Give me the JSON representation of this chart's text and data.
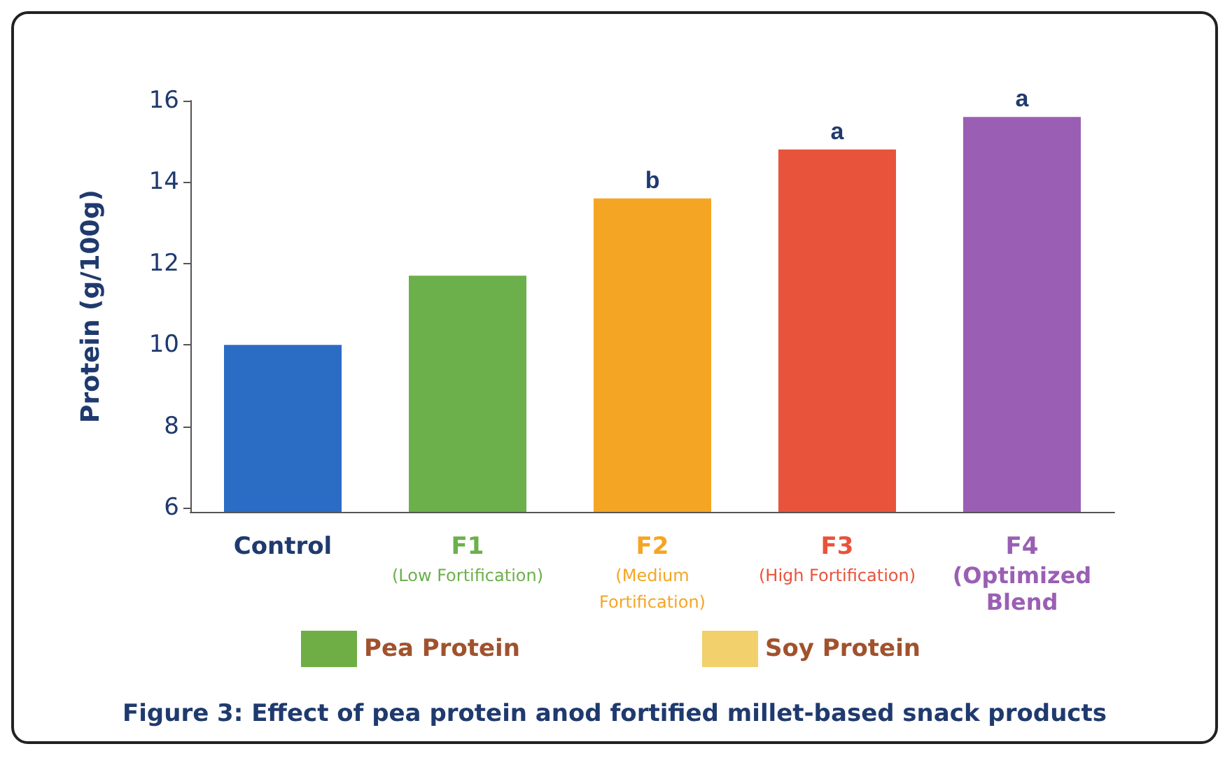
{
  "chart_data": {
    "type": "bar",
    "title": "Figure 3: Effect of pea protein anod fortified millet-based snack products",
    "ylabel": "Protein (g/100g)",
    "categories": [
      "Control",
      "F1\n(Low Fortification)",
      "F2\n(Medium\nFortification)",
      "F3\n(High Fortification)",
      "F4\n(Optimized\nBlend"
    ],
    "series": [
      {
        "values": [
          10.0,
          11.7,
          13.6,
          14.8,
          15.6
        ],
        "colors": [
          "#2b6cc4",
          "#6bb04a",
          "#f5a524",
          "#e8533b",
          "#9a5fb4"
        ]
      },
      {
        "name": "Pea Protein",
        "color": "#6fae45",
        "values": [
          null,
          null,
          null,
          null,
          null
        ]
      },
      {
        "name": "Soy Protein",
        "color": "#f2d06b",
        "values": [
          null,
          null,
          null,
          null,
          null
        ]
      }
    ],
    "ylim": [
      5.9,
      16
    ],
    "yticks": [
      6,
      8,
      10,
      12,
      14,
      16
    ],
    "grid": false,
    "legend": "bottom",
    "annotations": [
      {
        "text": "b",
        "x": "F2\n(Medium\nFortification)",
        "y": 13.6
      },
      {
        "text": "a",
        "x": "F3\n(High Fortification)",
        "y": 14.8
      },
      {
        "text": "a",
        "x": "F4\n(Optimized\nBlend",
        "y": 15.6
      }
    ]
  }
}
